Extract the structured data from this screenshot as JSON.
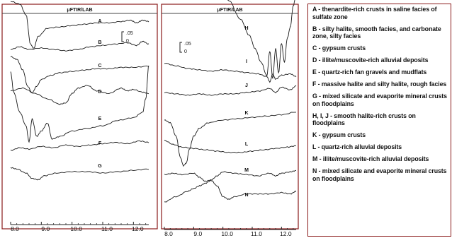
{
  "panel_left": {
    "title": "μFTIR/LAB",
    "x_ticks": [
      "8.0",
      "9.0",
      "10.0",
      "11.0",
      "12.0"
    ],
    "scale_bar": {
      "upper": ".05",
      "lower": "0"
    }
  },
  "panel_right": {
    "title": "μFTIR/LAB",
    "x_ticks": [
      "8.0",
      "9.0",
      "10.0",
      "11.0",
      "12.0"
    ],
    "scale_bar": {
      "upper": ".05",
      "lower": "0"
    }
  },
  "legend": {
    "items": [
      "A - thenardite-rich crusts in saline facies of sulfate zone",
      "B - silty halite, smooth facies, and carbonate zone, silty facies",
      "C - gypsum crusts",
      "D - illite/muscovite-rich alluvial deposits",
      "E - quartz-rich fan gravels  and mudflats",
      "F - massive halite and silty halite, rough facies",
      "G - mixed silicate and evaporite mineral crusts on floodplains",
      "H, I, J - smooth halite-rich crusts on floodplains",
      "K - gypsum crusts",
      "L - quartz-rich alluvial deposits",
      "M - illite/muscovite-rich alluvial deposits",
      "N - mixed silicate and evaporite mineral crusts on floodplains"
    ]
  },
  "chart_data": [
    {
      "type": "line",
      "title": "μFTIR/LAB",
      "xlim": [
        8.0,
        12.5
      ],
      "x_ticks": [
        8.0,
        9.0,
        10.0,
        11.0,
        12.0
      ],
      "series": [
        {
          "name": "A",
          "x": [
            8.0,
            8.3,
            8.5,
            8.65,
            8.75,
            8.9,
            9.2,
            9.6,
            10.0,
            10.4,
            10.8,
            11.2,
            11.6,
            11.9,
            12.1,
            12.3,
            12.5
          ],
          "y": [
            0.02,
            0.018,
            0.01,
            -0.012,
            -0.015,
            -0.006,
            0.0,
            0.001,
            0.002,
            0.003,
            0.004,
            0.004,
            0.005,
            0.006,
            0.004,
            0.006,
            0.005
          ]
        },
        {
          "name": "B",
          "x": [
            8.0,
            8.3,
            8.6,
            9.0,
            9.4,
            9.8,
            10.2,
            10.6,
            11.0,
            11.4,
            11.8,
            12.1,
            12.3,
            12.5
          ],
          "y": [
            0.0,
            0.002,
            0.0,
            0.001,
            0.0,
            -0.001,
            0.0,
            0.002,
            0.003,
            0.004,
            0.005,
            0.003,
            0.006,
            0.004
          ]
        },
        {
          "name": "C",
          "x": [
            8.0,
            8.2,
            8.4,
            8.55,
            8.7,
            8.85,
            9.0,
            9.3,
            9.6,
            10.0,
            10.4,
            10.8,
            11.2,
            11.6,
            12.0,
            12.5
          ],
          "y": [
            0.012,
            0.01,
            0.002,
            -0.01,
            -0.015,
            -0.01,
            -0.005,
            -0.002,
            0.0,
            0.001,
            0.002,
            0.003,
            0.003,
            0.004,
            0.004,
            0.005
          ]
        },
        {
          "name": "D",
          "x": [
            8.0,
            8.4,
            8.8,
            9.2,
            9.6,
            9.8,
            10.0,
            10.2,
            10.5,
            10.8,
            11.2,
            11.6,
            11.8,
            12.0,
            12.3,
            12.5
          ],
          "y": [
            0.006,
            0.008,
            0.004,
            0.0,
            -0.004,
            -0.003,
            0.004,
            0.008,
            0.01,
            0.006,
            0.004,
            0.008,
            0.006,
            0.007,
            0.005,
            0.004
          ]
        },
        {
          "name": "E",
          "x": [
            8.0,
            8.1,
            8.3,
            8.5,
            8.6,
            8.7,
            8.85,
            9.0,
            9.2,
            9.35,
            9.6,
            10.0,
            10.5,
            11.0,
            11.5,
            12.0,
            12.3,
            12.4,
            12.5
          ],
          "y": [
            0.04,
            0.025,
            0.01,
            0.0,
            -0.012,
            0.005,
            -0.008,
            -0.004,
            0.002,
            -0.01,
            -0.008,
            -0.004,
            -0.002,
            0.0,
            0.004,
            0.006,
            0.01,
            0.02,
            0.045
          ]
        },
        {
          "name": "F",
          "x": [
            8.0,
            8.3,
            8.6,
            9.0,
            9.4,
            9.8,
            10.2,
            10.6,
            11.0,
            11.4,
            11.8,
            12.2,
            12.5
          ],
          "y": [
            0.0,
            0.002,
            0.001,
            0.003,
            0.002,
            0.004,
            0.003,
            0.004,
            0.005,
            0.006,
            0.005,
            0.007,
            0.006
          ]
        },
        {
          "name": "G",
          "x": [
            8.0,
            8.2,
            8.5,
            8.7,
            8.9,
            9.1,
            9.5,
            10.0,
            10.5,
            11.0,
            11.5,
            12.0,
            12.5
          ],
          "y": [
            0.004,
            0.003,
            0.0,
            -0.004,
            -0.005,
            -0.002,
            0.0,
            0.001,
            0.001,
            0.0,
            0.001,
            0.002,
            0.003
          ]
        }
      ]
    },
    {
      "type": "line",
      "title": "μFTIR/LAB",
      "xlim": [
        8.0,
        12.5
      ],
      "x_ticks": [
        8.0,
        9.0,
        10.0,
        11.0,
        12.0
      ],
      "series": [
        {
          "name": "H",
          "x": [
            8.0,
            8.3,
            8.6,
            9.0,
            9.4,
            9.8,
            10.2,
            10.6,
            10.9,
            11.1,
            11.3,
            11.5,
            11.6,
            11.7,
            11.8,
            11.9,
            12.0,
            12.1,
            12.2,
            12.3,
            12.4,
            12.5
          ],
          "y": [
            0.03,
            0.04,
            0.044,
            0.045,
            0.042,
            0.036,
            0.026,
            0.012,
            0.0,
            -0.01,
            -0.02,
            -0.03,
            -0.012,
            -0.032,
            -0.01,
            -0.028,
            -0.006,
            -0.02,
            -0.002,
            0.006,
            0.022,
            0.03
          ]
        },
        {
          "name": "I",
          "x": [
            8.0,
            8.4,
            8.8,
            9.2,
            9.6,
            10.0,
            10.4,
            10.8,
            11.2,
            11.5,
            11.6,
            11.7,
            11.8,
            12.0,
            12.3,
            12.5
          ],
          "y": [
            0.004,
            0.002,
            0.0,
            -0.001,
            -0.002,
            -0.001,
            -0.002,
            -0.003,
            -0.004,
            -0.006,
            -0.01,
            -0.004,
            -0.008,
            -0.005,
            -0.004,
            -0.006
          ]
        },
        {
          "name": "J",
          "x": [
            8.0,
            8.4,
            8.8,
            9.2,
            9.6,
            10.0,
            10.4,
            10.8,
            11.2,
            11.6,
            11.8,
            12.0,
            12.3,
            12.5
          ],
          "y": [
            0.0,
            -0.001,
            -0.002,
            -0.001,
            -0.002,
            -0.001,
            -0.001,
            0.0,
            0.001,
            0.003,
            0.0,
            0.004,
            0.002,
            0.005
          ]
        },
        {
          "name": "K",
          "x": [
            8.0,
            8.2,
            8.4,
            8.55,
            8.65,
            8.75,
            8.85,
            9.0,
            9.2,
            9.5,
            10.0,
            10.5,
            11.0,
            11.5,
            12.0,
            12.5
          ],
          "y": [
            0.0,
            -0.002,
            -0.012,
            -0.028,
            -0.034,
            -0.032,
            -0.022,
            -0.012,
            -0.006,
            -0.002,
            0.0,
            0.001,
            0.002,
            0.003,
            0.004,
            0.006
          ]
        },
        {
          "name": "L",
          "x": [
            8.0,
            8.3,
            8.6,
            9.0,
            9.4,
            9.8,
            10.2,
            10.6,
            11.0,
            11.4,
            11.8,
            12.2,
            12.5
          ],
          "y": [
            0.008,
            0.005,
            0.003,
            0.002,
            0.001,
            0.0,
            -0.001,
            -0.001,
            0.0,
            0.001,
            0.002,
            0.003,
            0.004
          ]
        },
        {
          "name": "M",
          "x": [
            8.0,
            8.3,
            8.6,
            9.0,
            9.2,
            9.4,
            9.6,
            9.8,
            10.0,
            10.4,
            10.8,
            11.2,
            11.6,
            11.8,
            12.0,
            12.3,
            12.5
          ],
          "y": [
            0.002,
            0.003,
            0.002,
            0.003,
            0.0,
            -0.003,
            -0.002,
            0.001,
            0.004,
            0.003,
            0.002,
            0.001,
            0.003,
            0.001,
            0.003,
            0.004,
            0.005
          ]
        },
        {
          "name": "N",
          "x": [
            8.0,
            8.4,
            8.8,
            9.0,
            9.2,
            9.4,
            9.6,
            9.8,
            10.0,
            10.2,
            10.4,
            10.8,
            11.2,
            11.6,
            12.0,
            12.3,
            12.5
          ],
          "y": [
            0.0,
            0.004,
            0.008,
            0.01,
            0.012,
            0.014,
            0.016,
            0.012,
            0.004,
            0.002,
            0.004,
            0.006,
            0.006,
            0.006,
            0.007,
            0.006,
            0.008
          ]
        }
      ]
    }
  ]
}
